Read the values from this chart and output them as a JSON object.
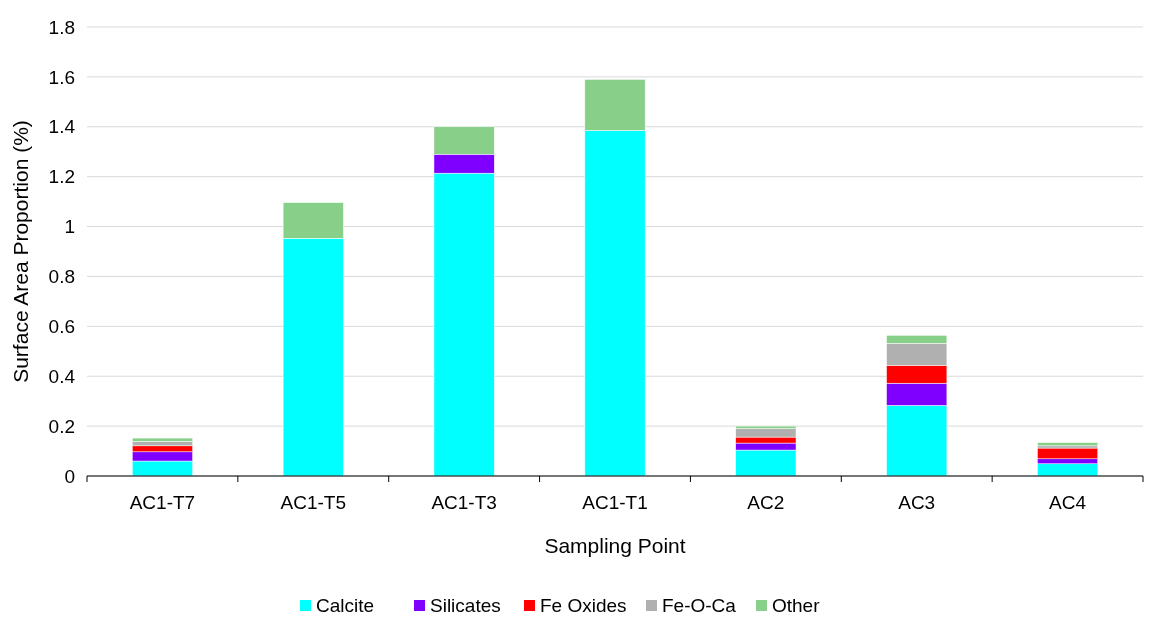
{
  "chart_data": {
    "type": "bar",
    "stacked": true,
    "xlabel": "Sampling Point",
    "ylabel": "Surface Area Proportion (%)",
    "categories": [
      "AC1-T7",
      "AC1-T5",
      "AC1-T3",
      "AC1-T1",
      "AC2",
      "AC3",
      "AC4"
    ],
    "series": [
      {
        "name": "Calcite",
        "color": "#00ffff",
        "values": [
          0.06,
          0.953,
          1.214,
          1.385,
          0.104,
          0.283,
          0.049
        ]
      },
      {
        "name": "Silicates",
        "color": "#8000ff",
        "values": [
          0.037,
          0,
          0.076,
          0,
          0.028,
          0.089,
          0.02
        ]
      },
      {
        "name": "Fe Oxides",
        "color": "#ff0000",
        "values": [
          0.024,
          0,
          0,
          0,
          0.024,
          0.072,
          0.043
        ]
      },
      {
        "name": "Fe-O-Ca",
        "color": "#b0b0b0",
        "values": [
          0.018,
          0,
          0,
          0,
          0.034,
          0.088,
          0.009
        ]
      },
      {
        "name": "Other",
        "color": "#88cf8a",
        "values": [
          0.013,
          0.143,
          0.11,
          0.205,
          0.01,
          0.032,
          0.013
        ]
      }
    ],
    "ylim": [
      0,
      1.8
    ],
    "yticks": [
      0,
      0.2,
      0.4,
      0.6,
      0.8,
      1,
      1.2,
      1.4,
      1.6,
      1.8
    ],
    "grid": "y",
    "legend": "bottom"
  }
}
